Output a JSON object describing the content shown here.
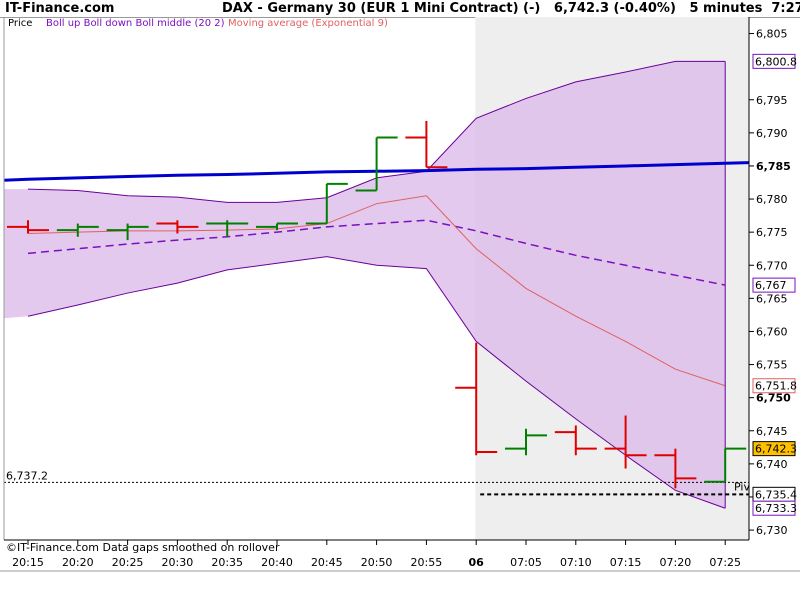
{
  "header": {
    "site": "IT-Finance.com",
    "title": "DAX - Germany 30 (EUR 1 Mini Contract) (-)   6,742.3 (-0.40%)   5 minutes  7:27"
  },
  "legend": {
    "price": "Price",
    "boll": "Boll up Boll down Boll middle (20 2)",
    "ma": "Moving average (Exponential 9)"
  },
  "footer": "©IT-Finance.com  Data gaps smoothed on rollover",
  "colors": {
    "up": "#008000",
    "down": "#e00000",
    "boll_fill": "#dcbcea",
    "boll_edge": "#6a009a",
    "boll_mid": "#7a10c0",
    "ma": "#e06060",
    "trend": "#0000cc",
    "shade": "#eeeeee"
  },
  "chart_data": {
    "type": "ohlc",
    "y_range": [
      6728.5,
      6807.5
    ],
    "x_labels": [
      "20:15",
      "20:20",
      "20:25",
      "20:30",
      "20:35",
      "20:40",
      "20:45",
      "20:50",
      "20:55",
      "06",
      "07:05",
      "07:10",
      "07:15",
      "07:20",
      "07:25"
    ],
    "y_ticks": [
      6730,
      6735,
      6740,
      6745,
      6750,
      6755,
      6760,
      6765,
      6770,
      6775,
      6780,
      6785,
      6790,
      6795,
      6805
    ],
    "bars": [
      {
        "o": 6775.8,
        "h": 6776.8,
        "l": 6774.8,
        "c": 6775.3,
        "dir": "down"
      },
      {
        "o": 6775.3,
        "h": 6776.3,
        "l": 6774.3,
        "c": 6775.8,
        "dir": "up"
      },
      {
        "o": 6775.3,
        "h": 6776.3,
        "l": 6773.8,
        "c": 6775.8,
        "dir": "up"
      },
      {
        "o": 6776.3,
        "h": 6776.8,
        "l": 6774.8,
        "c": 6775.8,
        "dir": "down"
      },
      {
        "o": 6776.3,
        "h": 6776.8,
        "l": 6774.3,
        "c": 6776.3,
        "dir": "up"
      },
      {
        "o": 6775.8,
        "h": 6776.3,
        "l": 6775.3,
        "c": 6776.3,
        "dir": "up"
      },
      {
        "o": 6776.3,
        "h": 6782.3,
        "l": 6776.3,
        "c": 6782.3,
        "dir": "up"
      },
      {
        "o": 6781.3,
        "h": 6789.3,
        "l": 6781.3,
        "c": 6789.3,
        "dir": "up"
      },
      {
        "o": 6789.3,
        "h": 6791.8,
        "l": 6784.8,
        "c": 6784.8,
        "dir": "down"
      },
      {
        "o": 6751.5,
        "h": 6758.3,
        "l": 6741.3,
        "c": 6741.8,
        "dir": "down"
      },
      {
        "o": 6742.3,
        "h": 6745.3,
        "l": 6741.3,
        "c": 6744.3,
        "dir": "up"
      },
      {
        "o": 6744.8,
        "h": 6745.8,
        "l": 6741.3,
        "c": 6742.3,
        "dir": "down"
      },
      {
        "o": 6742.3,
        "h": 6747.3,
        "l": 6739.3,
        "c": 6741.3,
        "dir": "down"
      },
      {
        "o": 6741.3,
        "h": 6742.3,
        "l": 6736.3,
        "c": 6737.8,
        "dir": "down"
      },
      {
        "o": 6737.3,
        "h": 6742.3,
        "l": 6737.3,
        "c": 6742.3,
        "dir": "up"
      }
    ],
    "boll_up": [
      6781.5,
      6781.3,
      6780.5,
      6780.3,
      6779.5,
      6779.5,
      6780.2,
      6783.2,
      6784.2,
      6792.2,
      6795.2,
      6797.7,
      6799.2,
      6800.8,
      6800.8
    ],
    "boll_down": [
      6762.3,
      6764.0,
      6765.8,
      6767.3,
      6769.3,
      6770.3,
      6771.3,
      6770.0,
      6769.5,
      6758.5,
      6752.5,
      6746.8,
      6741.3,
      6736.0,
      6733.3
    ],
    "boll_mid": [
      6771.8,
      6772.5,
      6773.2,
      6773.8,
      6774.3,
      6775.0,
      6775.8,
      6776.3,
      6776.8,
      6775.2,
      6773.3,
      6771.5,
      6770.0,
      6768.5,
      6767.0
    ],
    "ma": [
      6774.8,
      6775.0,
      6775.2,
      6775.2,
      6775.3,
      6775.5,
      6776.3,
      6779.3,
      6780.5,
      6772.5,
      6766.5,
      6762.3,
      6758.5,
      6754.3,
      6751.8
    ],
    "trend": [
      6783.0,
      6783.2,
      6783.4,
      6783.6,
      6783.7,
      6783.9,
      6784.1,
      6784.2,
      6784.3,
      6784.5,
      6784.6,
      6784.8,
      6785.0,
      6785.2,
      6785.4
    ],
    "right_labels": [
      {
        "value": 6800.8,
        "text": "6,800.8",
        "color": "#7a10c0",
        "bg": "#ffffff"
      },
      {
        "value": 6767.0,
        "text": "6,767",
        "color": "#7a10c0",
        "bg": "#ffffff"
      },
      {
        "value": 6751.8,
        "text": "6,751.8",
        "color": "#e06060",
        "bg": "#ffffff"
      },
      {
        "value": 6742.3,
        "text": "6,742.3",
        "color": "#000000",
        "bg": "#ffc000"
      },
      {
        "value": 6735.4,
        "text": "6,735.4",
        "color": "#000000",
        "bg": "#ffffff"
      },
      {
        "value": 6733.3,
        "text": "6,733.3",
        "color": "#7a10c0",
        "bg": "#ffffff"
      }
    ],
    "h_lines": [
      {
        "value": 6737.2,
        "text": "6,737.2",
        "style": "dotted"
      },
      {
        "value": 6735.4,
        "text": "Piv",
        "style": "dashed"
      }
    ]
  }
}
